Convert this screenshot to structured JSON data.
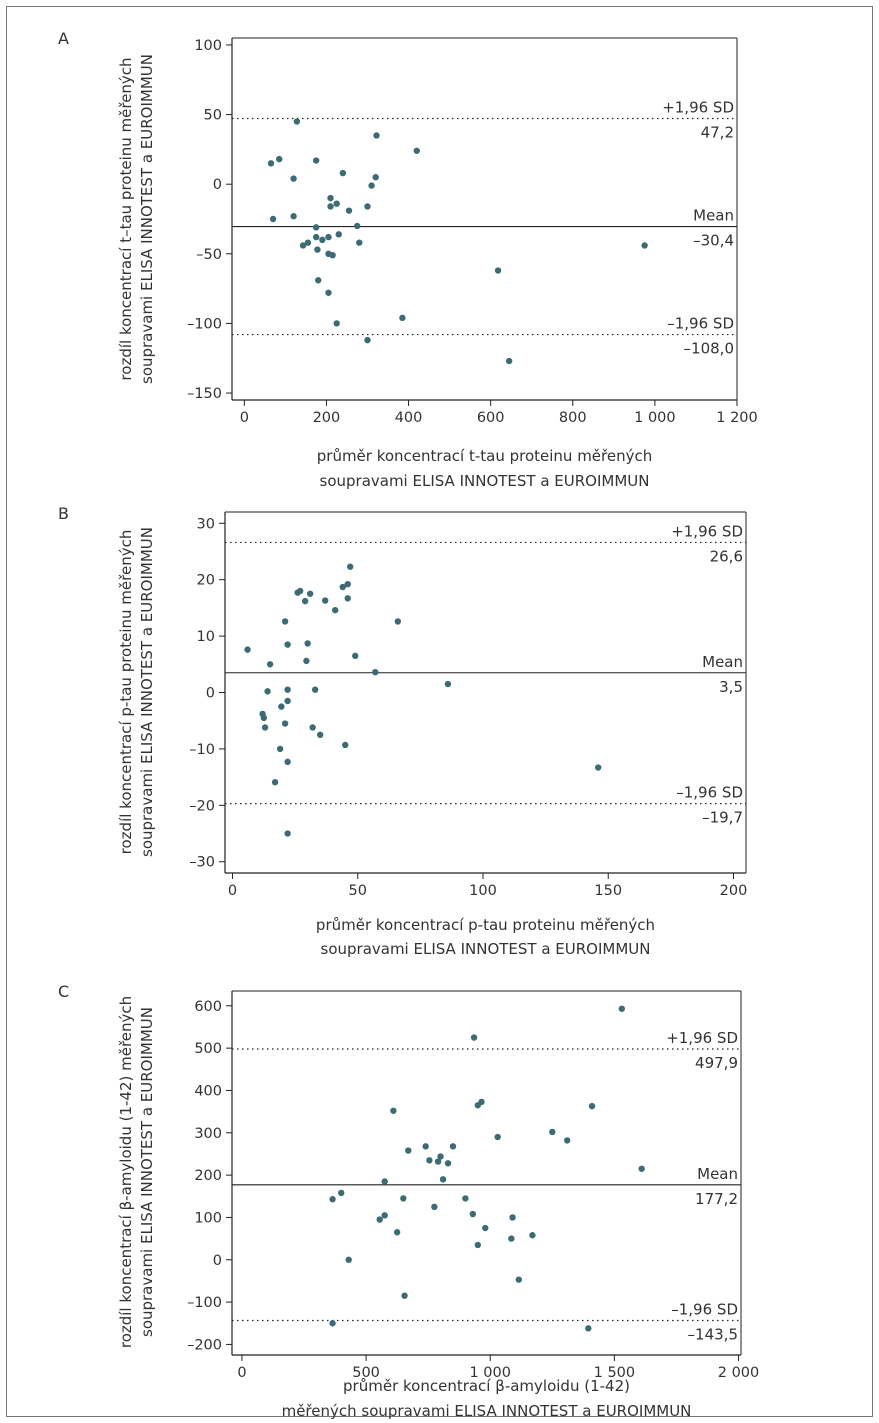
{
  "colors": {
    "point": "#3d6b74",
    "axis": "#222222",
    "text": "#333333"
  },
  "chart_data": [
    {
      "type": "scatter",
      "panel_label": "A",
      "xlabel": [
        "průměr koncentrací t-tau proteinu měřených",
        "soupravami ELISA INNOTEST a EUROIMMUN"
      ],
      "ylabel": [
        "rozdíl koncentrací t–tau proteinu měřených",
        "soupravami ELISA INNOTEST a EUROIMMUN"
      ],
      "xlim": [
        -30,
        1200
      ],
      "ylim": [
        -155,
        105
      ],
      "xticks": [
        0,
        200,
        400,
        600,
        800,
        1000,
        1200
      ],
      "xtick_labels": [
        "0",
        "200",
        "400",
        "600",
        "800",
        "1 000",
        "1 200"
      ],
      "yticks": [
        -150,
        -100,
        -50,
        0,
        50,
        100
      ],
      "ytick_labels": [
        "–150",
        "–100",
        "–50",
        "0",
        "50",
        "100"
      ],
      "ref_lines": [
        {
          "name": "+1,96 SD",
          "value_label": "47,2",
          "y": 47.2,
          "style": "dotted"
        },
        {
          "name": "Mean",
          "value_label": "–30,4",
          "y": -30.4,
          "style": "solid"
        },
        {
          "name": "–1,96 SD",
          "value_label": "–108,0",
          "y": -108.0,
          "style": "dotted"
        }
      ],
      "points": [
        [
          65,
          15
        ],
        [
          85,
          18
        ],
        [
          128,
          45
        ],
        [
          120,
          4
        ],
        [
          120,
          -23
        ],
        [
          70,
          -25
        ],
        [
          175,
          17
        ],
        [
          175,
          -31
        ],
        [
          175,
          -38
        ],
        [
          178,
          -47
        ],
        [
          190,
          -40
        ],
        [
          210,
          -10
        ],
        [
          210,
          -16
        ],
        [
          225,
          -14
        ],
        [
          240,
          8
        ],
        [
          255,
          -19
        ],
        [
          230,
          -36
        ],
        [
          205,
          -38
        ],
        [
          205,
          -50
        ],
        [
          215,
          -51
        ],
        [
          180,
          -69
        ],
        [
          205,
          -78
        ],
        [
          275,
          -30
        ],
        [
          280,
          -42
        ],
        [
          300,
          -16
        ],
        [
          310,
          -1
        ],
        [
          320,
          5
        ],
        [
          322,
          35
        ],
        [
          420,
          24
        ],
        [
          155,
          -42
        ],
        [
          143,
          -44
        ],
        [
          225,
          -100
        ],
        [
          300,
          -112
        ],
        [
          385,
          -96
        ],
        [
          618,
          -62
        ],
        [
          645,
          -127
        ],
        [
          975,
          -44
        ]
      ]
    },
    {
      "type": "scatter",
      "panel_label": "B",
      "xlabel": [
        "průměr koncentrací p-tau proteinu měřených",
        "soupravami ELISA INNOTEST a EUROIMMUN"
      ],
      "ylabel": [
        "rozdíl koncentrací p-tau proteinu měřených",
        "soupravami ELISA INNOTEST a EUROIMMUN"
      ],
      "xlim": [
        -3,
        205
      ],
      "ylim": [
        -32,
        32
      ],
      "xticks": [
        0,
        50,
        100,
        150,
        200
      ],
      "xtick_labels": [
        "0",
        "50",
        "100",
        "150",
        "200"
      ],
      "yticks": [
        -30,
        -20,
        -10,
        0,
        10,
        20,
        30
      ],
      "ytick_labels": [
        "–30",
        "–20",
        "–10",
        "0",
        "10",
        "20",
        "30"
      ],
      "ref_lines": [
        {
          "name": "+1,96 SD",
          "value_label": "26,6",
          "y": 26.6,
          "style": "dotted"
        },
        {
          "name": "Mean",
          "value_label": "3,5",
          "y": 3.5,
          "style": "solid"
        },
        {
          "name": "–1,96 SD",
          "value_label": "–19,7",
          "y": -19.7,
          "style": "dotted"
        }
      ],
      "points": [
        [
          6,
          7.6
        ],
        [
          15,
          5
        ],
        [
          14,
          0.2
        ],
        [
          12,
          -3.8
        ],
        [
          12.5,
          -4.5
        ],
        [
          13,
          -6.2
        ],
        [
          17,
          -15.9
        ],
        [
          19,
          -10
        ],
        [
          19.5,
          -2.5
        ],
        [
          21,
          12.6
        ],
        [
          21,
          -5.5
        ],
        [
          22,
          8.5
        ],
        [
          22,
          0.5
        ],
        [
          22,
          -1.5
        ],
        [
          22,
          -12.3
        ],
        [
          22,
          -25
        ],
        [
          26,
          17.7
        ],
        [
          27,
          18
        ],
        [
          29,
          16.2
        ],
        [
          31,
          17.5
        ],
        [
          30,
          8.7
        ],
        [
          29.5,
          5.6
        ],
        [
          33,
          0.5
        ],
        [
          32,
          -6.2
        ],
        [
          35,
          -7.5
        ],
        [
          37,
          16.3
        ],
        [
          41,
          14.6
        ],
        [
          44,
          18.7
        ],
        [
          46,
          19.2
        ],
        [
          47,
          22.3
        ],
        [
          46,
          16.7
        ],
        [
          45,
          -9.3
        ],
        [
          49,
          6.5
        ],
        [
          57,
          3.6
        ],
        [
          66,
          12.6
        ],
        [
          86,
          1.5
        ],
        [
          146,
          -13.3
        ]
      ]
    },
    {
      "type": "scatter",
      "panel_label": "C",
      "xlabel": [
        "průměr koncentrací β-amyloidu (1-42)",
        "měřených soupravami ELISA INNOTEST a EUROIMMUN"
      ],
      "ylabel": [
        "rozdíl koncentrací β-amyloidu (1-42) měřených",
        "soupravami ELISA INNOTEST a EUROIMMUN"
      ],
      "xlim": [
        -40,
        2010
      ],
      "ylim": [
        -225,
        635
      ],
      "xticks": [
        0,
        500,
        1000,
        1500,
        2000
      ],
      "xtick_labels": [
        "0",
        "500",
        "1 000",
        "1 500",
        "2 000"
      ],
      "yticks": [
        -200,
        -100,
        0,
        100,
        200,
        300,
        400,
        500,
        600
      ],
      "ytick_labels": [
        "–200",
        "–100",
        "0",
        "100",
        "200",
        "300",
        "400",
        "500",
        "600"
      ],
      "ref_lines": [
        {
          "name": "+1,96 SD",
          "value_label": "497,9",
          "y": 497.9,
          "style": "dotted"
        },
        {
          "name": "Mean",
          "value_label": "177,2",
          "y": 177.2,
          "style": "solid"
        },
        {
          "name": "–1,96 SD",
          "value_label": "–143,5",
          "y": -143.5,
          "style": "dotted"
        }
      ],
      "points": [
        [
          365,
          143
        ],
        [
          400,
          158
        ],
        [
          430,
          0
        ],
        [
          365,
          -150
        ],
        [
          555,
          95
        ],
        [
          575,
          105
        ],
        [
          575,
          185
        ],
        [
          610,
          352
        ],
        [
          625,
          65
        ],
        [
          650,
          145
        ],
        [
          670,
          258
        ],
        [
          655,
          -85
        ],
        [
          740,
          268
        ],
        [
          755,
          235
        ],
        [
          775,
          125
        ],
        [
          790,
          232
        ],
        [
          800,
          244
        ],
        [
          810,
          190
        ],
        [
          830,
          228
        ],
        [
          850,
          268
        ],
        [
          900,
          145
        ],
        [
          935,
          525
        ],
        [
          930,
          108
        ],
        [
          950,
          365
        ],
        [
          965,
          373
        ],
        [
          950,
          35
        ],
        [
          980,
          75
        ],
        [
          1030,
          290
        ],
        [
          1085,
          50
        ],
        [
          1090,
          100
        ],
        [
          1115,
          -47
        ],
        [
          1170,
          58
        ],
        [
          1250,
          302
        ],
        [
          1310,
          282
        ],
        [
          1395,
          -162
        ],
        [
          1410,
          363
        ],
        [
          1530,
          593
        ],
        [
          1610,
          215
        ]
      ]
    }
  ]
}
